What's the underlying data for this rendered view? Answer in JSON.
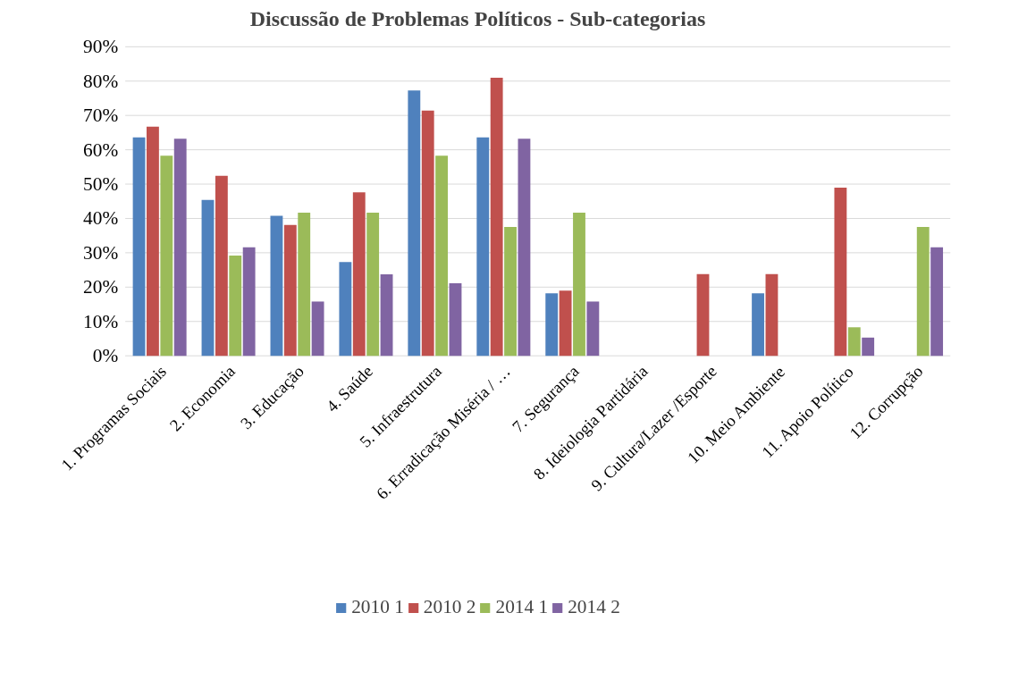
{
  "chart_data": {
    "type": "bar",
    "title": "Discussão de Problemas Políticos - Sub-categorias",
    "categories": [
      "1. Programas Sociais",
      "2. Economia",
      "3. Educação",
      "4. Saúde",
      "5. Infraestrutura",
      "6. Erradicação Miséria / …",
      "7. Segurança",
      "8. Ideiologia Partidária",
      "9. Cultura/Lazer /Esporte",
      "10. Meio Ambiente",
      "11. Apoio Político",
      "12. Corrupção"
    ],
    "series": [
      {
        "name": "2010 1",
        "color": "#4f81bd",
        "values": [
          63.6,
          45.4,
          40.8,
          27.3,
          77.3,
          63.6,
          18.2,
          null,
          null,
          18.2,
          null,
          null
        ]
      },
      {
        "name": "2010 2",
        "color": "#c0504d",
        "values": [
          66.7,
          52.4,
          38.1,
          47.6,
          71.4,
          81.0,
          19.0,
          null,
          23.8,
          23.8,
          49.0,
          null
        ]
      },
      {
        "name": "2014 1",
        "color": "#9bbb59",
        "values": [
          58.3,
          29.2,
          41.7,
          41.7,
          58.3,
          37.5,
          41.7,
          null,
          null,
          null,
          8.3,
          37.5
        ]
      },
      {
        "name": "2014 2",
        "color": "#8064a2",
        "values": [
          63.2,
          31.6,
          15.8,
          23.7,
          21.1,
          63.2,
          15.8,
          null,
          null,
          null,
          5.3,
          31.6
        ]
      }
    ],
    "ylim": [
      0,
      90
    ],
    "yticks": [
      {
        "value": 0,
        "label": "0%"
      },
      {
        "value": 10,
        "label": "10%"
      },
      {
        "value": 20,
        "label": "20%"
      },
      {
        "value": 30,
        "label": "30%"
      },
      {
        "value": 40,
        "label": "40%"
      },
      {
        "value": 50,
        "label": "50%"
      },
      {
        "value": 60,
        "label": "60%"
      },
      {
        "value": 70,
        "label": "70%"
      },
      {
        "value": 80,
        "label": "80%"
      },
      {
        "value": 90,
        "label": "90%"
      }
    ],
    "grid": "y",
    "legend": "bottom"
  }
}
